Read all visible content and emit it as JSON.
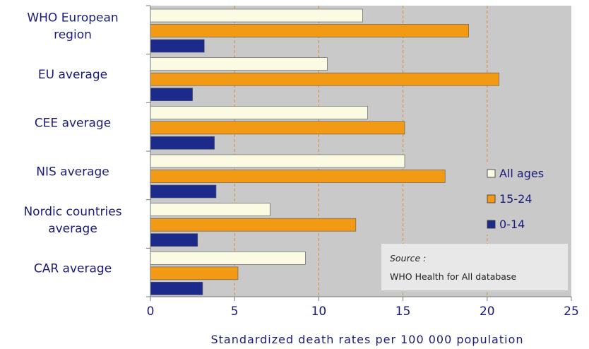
{
  "colors": {
    "plot_bg": "#c9c9c9",
    "grid": "#d98a30",
    "all_ages": "#fbfbe3",
    "age_15_24": "#f29a14",
    "age_0_14": "#1c2a8c",
    "text": "#1a1a7a"
  },
  "chart_data": {
    "type": "bar",
    "orientation": "horizontal",
    "categories": [
      [
        "WHO European",
        "region"
      ],
      [
        "EU average"
      ],
      [
        "CEE average"
      ],
      [
        "NIS average"
      ],
      [
        "Nordic countries",
        "average"
      ],
      [
        "CAR average"
      ]
    ],
    "series": [
      {
        "name": "All ages",
        "values": [
          12.6,
          10.5,
          12.9,
          15.1,
          7.1,
          9.2
        ]
      },
      {
        "name": "15-24",
        "values": [
          18.9,
          20.7,
          15.1,
          17.5,
          12.2,
          5.2
        ]
      },
      {
        "name": "0-14",
        "values": [
          3.2,
          2.5,
          3.8,
          3.9,
          2.8,
          3.1
        ]
      }
    ],
    "xlabel": "Standardized death rates per 100 000 population",
    "xlim": [
      0,
      25
    ],
    "xticks": [
      0,
      5,
      10,
      15,
      20,
      25
    ],
    "grid": true,
    "legend_position": "right"
  },
  "source": {
    "label": "Source :",
    "text": "WHO Health for All database"
  }
}
